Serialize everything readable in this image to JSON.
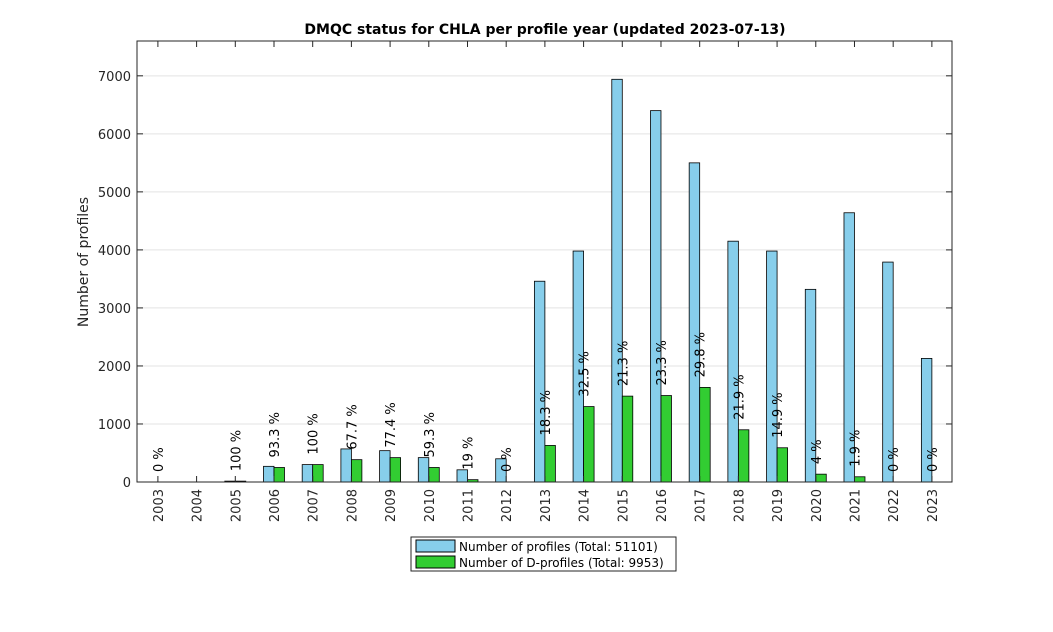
{
  "chart_data": {
    "type": "bar",
    "title": "DMQC status for CHLA per profile year (updated 2023-07-13)",
    "xlabel": "",
    "ylabel": "Number of profiles",
    "ylim": [
      0,
      7600
    ],
    "yticks": [
      0,
      1000,
      2000,
      3000,
      4000,
      5000,
      6000,
      7000
    ],
    "grid": true,
    "legend_position": "bottom-center",
    "categories": [
      "2003",
      "2004",
      "2005",
      "2006",
      "2007",
      "2008",
      "2009",
      "2010",
      "2011",
      "2012",
      "2013",
      "2014",
      "2015",
      "2016",
      "2017",
      "2018",
      "2019",
      "2020",
      "2021",
      "2022",
      "2023"
    ],
    "series": [
      {
        "name": "Number of profiles (Total: 51101)",
        "color": "#87CEEB",
        "values": [
          0,
          0,
          15,
          270,
          300,
          570,
          540,
          420,
          210,
          400,
          3460,
          3980,
          6940,
          6400,
          5500,
          4150,
          3980,
          3320,
          4640,
          3790,
          2130
        ]
      },
      {
        "name": "Number of D-profiles (Total: 9953)",
        "color": "#32CD32",
        "values": [
          0,
          0,
          15,
          250,
          300,
          385,
          420,
          250,
          40,
          0,
          630,
          1300,
          1480,
          1490,
          1630,
          900,
          590,
          135,
          90,
          0,
          0
        ]
      }
    ],
    "data_labels": [
      "0 %",
      "",
      "100 %",
      "93.3 %",
      "100 %",
      "67.7 %",
      "77.4 %",
      "59.3 %",
      "19 %",
      "0 %",
      "18.3 %",
      "32.5 %",
      "21.3 %",
      "23.3 %",
      "29.8 %",
      "21.9 %",
      "14.9 %",
      "4 %",
      "1.9 %",
      "0 %",
      "0 %"
    ]
  }
}
